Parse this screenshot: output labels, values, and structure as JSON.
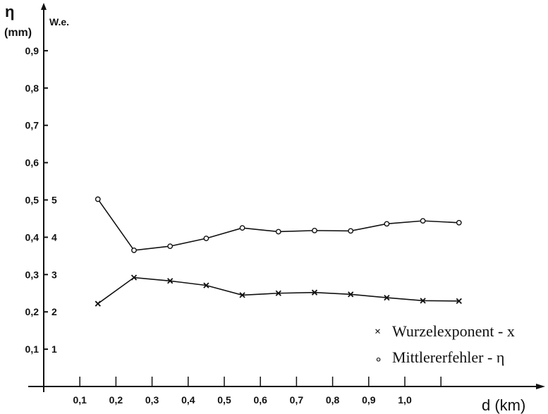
{
  "chart_data": {
    "type": "line",
    "title": "",
    "xlabel": "d (km)",
    "ylabel_left": "η",
    "ylabel_left_unit": "(mm)",
    "ylabel_right": "W.e.",
    "x": [
      0.15,
      0.25,
      0.35,
      0.45,
      0.55,
      0.65,
      0.75,
      0.85,
      0.95,
      1.05,
      1.15
    ],
    "x_tick_labels": [
      "0,1",
      "0,2",
      "0,3",
      "0,4",
      "0,5",
      "0,6",
      "0,7",
      "0,8",
      "0,9",
      "1,0"
    ],
    "x_tick_values": [
      0.1,
      0.2,
      0.3,
      0.4,
      0.5,
      0.6,
      0.7,
      0.8,
      0.9,
      1.0
    ],
    "xlim": [
      0,
      1.3
    ],
    "ylim": [
      0,
      1.0
    ],
    "y_tick_values": [
      0.1,
      0.2,
      0.3,
      0.4,
      0.5,
      0.6,
      0.7,
      0.8,
      0.9
    ],
    "y_tick_labels_left": [
      "0,1",
      "0,2",
      "0,3",
      "0,4",
      "0,5",
      "0,6",
      "0,7",
      "0,8",
      "0,9"
    ],
    "y_tick_values_right": [
      0.1,
      0.2,
      0.3,
      0.4,
      0.5
    ],
    "y_tick_labels_right": [
      "1",
      "2",
      "3",
      "4",
      "5"
    ],
    "series": [
      {
        "name": "Mittlererfehler - η",
        "marker": "circle",
        "values": [
          0.502,
          0.365,
          0.376,
          0.397,
          0.425,
          0.415,
          0.418,
          0.417,
          0.436,
          0.444,
          0.439
        ]
      },
      {
        "name": "Wurzelexponent - x",
        "marker": "x",
        "values": [
          0.222,
          0.292,
          0.283,
          0.271,
          0.245,
          0.25,
          0.252,
          0.247,
          0.238,
          0.23,
          0.229
        ]
      }
    ],
    "legend": [
      {
        "marker": "×",
        "label": "Wurzelexponent - x"
      },
      {
        "marker": "∘",
        "label": "Mittlererfehler - η"
      }
    ],
    "legend_position": "bottom-right",
    "grid": false
  }
}
